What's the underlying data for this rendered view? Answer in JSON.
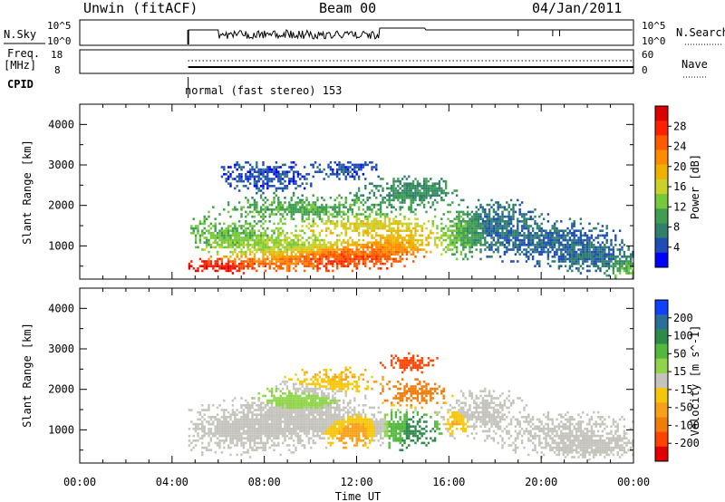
{
  "header": {
    "station": "Unwin (fitACF)",
    "beam": "Beam 00",
    "date": "04/Jan/2011"
  },
  "summary": {
    "nsky_label": "N.Sky",
    "nsearch_label": "N.Search",
    "freq_label_line1": "Freq.",
    "freq_label_line2": "[MHz]",
    "nave_label": "Nave",
    "cpid_label": "CPID",
    "cpid_text": "normal (fast stereo) 153",
    "noise_left_ticks": [
      "10^5",
      "10^0"
    ],
    "noise_right_ticks": [
      "10^5",
      "10^0"
    ],
    "freq_ticks": [
      "18",
      "8"
    ],
    "nave_ticks": [
      "60",
      "0"
    ],
    "data_start_hour": 4.7
  },
  "colors": {
    "power": [
      "#0000ff",
      "#1d4db5",
      "#2f7f6a",
      "#3f9e50",
      "#76c93a",
      "#c9d12a",
      "#f0b000",
      "#ff8c00",
      "#ff5a00",
      "#ff2000",
      "#dd0000"
    ],
    "velocity": [
      "#1040ff",
      "#2a6e9a",
      "#2e8a4a",
      "#52b83e",
      "#8fd44a",
      "#c4c4bc",
      "#f7c60b",
      "#f7a11a",
      "#f07c0a",
      "#ff4400",
      "#e00000"
    ]
  },
  "chart_data": [
    {
      "type": "heatmap",
      "panel": "power",
      "x_unit": "hours UT",
      "xlim": [
        0,
        24
      ],
      "ylim": [
        180,
        4500
      ],
      "ylabel": "Slant Range [km]",
      "xlabel": "Time UT",
      "xtick_labels": [
        "00:00",
        "04:00",
        "08:00",
        "12:00",
        "16:00",
        "20:00",
        "00:00"
      ],
      "ytick_labels": [
        "1000",
        "2000",
        "3000",
        "4000"
      ],
      "colorbar_label": "Power [dB]",
      "colorbar_ticks": [
        "28",
        "24",
        "20",
        "16",
        "12",
        "8",
        "4"
      ],
      "colorbar_range": [
        0,
        30
      ],
      "blobs": [
        {
          "t": 6.0,
          "r": 500,
          "dt": 1.4,
          "dr": 130,
          "v": 27
        },
        {
          "t": 8.5,
          "r": 600,
          "dt": 1.8,
          "dr": 160,
          "v": 22
        },
        {
          "t": 11.0,
          "r": 700,
          "dt": 1.8,
          "dr": 220,
          "v": 25
        },
        {
          "t": 13.0,
          "r": 800,
          "dt": 1.4,
          "dr": 250,
          "v": 23
        },
        {
          "t": 14.0,
          "r": 1100,
          "dt": 1.3,
          "dr": 220,
          "v": 17
        },
        {
          "t": 12.5,
          "r": 1500,
          "dt": 2.2,
          "dr": 180,
          "v": 16
        },
        {
          "t": 9.0,
          "r": 1000,
          "dt": 2.5,
          "dr": 250,
          "v": 14
        },
        {
          "t": 6.5,
          "r": 1300,
          "dt": 1.8,
          "dr": 300,
          "v": 11
        },
        {
          "t": 10.0,
          "r": 1900,
          "dt": 3.0,
          "dr": 250,
          "v": 10
        },
        {
          "t": 14.0,
          "r": 2300,
          "dt": 1.5,
          "dr": 280,
          "v": 8
        },
        {
          "t": 16.5,
          "r": 1300,
          "dt": 0.8,
          "dr": 420,
          "v": 12
        },
        {
          "t": 18.0,
          "r": 1500,
          "dt": 1.4,
          "dr": 500,
          "v": 6
        },
        {
          "t": 20.5,
          "r": 1100,
          "dt": 2.2,
          "dr": 420,
          "v": 5
        },
        {
          "t": 22.5,
          "r": 700,
          "dt": 1.6,
          "dr": 280,
          "v": 6
        },
        {
          "t": 23.6,
          "r": 450,
          "dt": 0.5,
          "dr": 180,
          "v": 12
        },
        {
          "t": 8.0,
          "r": 2700,
          "dt": 1.6,
          "dr": 300,
          "v": 4
        },
        {
          "t": 11.5,
          "r": 2900,
          "dt": 1.0,
          "dr": 200,
          "v": 4
        },
        {
          "t": 15.0,
          "r": 2400,
          "dt": 0.7,
          "dr": 200,
          "v": 8
        }
      ]
    },
    {
      "type": "heatmap",
      "panel": "velocity",
      "x_unit": "hours UT",
      "xlim": [
        0,
        24
      ],
      "ylim": [
        180,
        4500
      ],
      "ylabel": "Slant Range [km]",
      "xlabel": "Time UT",
      "xtick_labels": [
        "00:00",
        "04:00",
        "08:00",
        "12:00",
        "16:00",
        "20:00",
        "00:00"
      ],
      "ytick_labels": [
        "1000",
        "2000",
        "3000",
        "4000"
      ],
      "colorbar_label": "Velocity [m s^-1]",
      "colorbar_ticks": [
        "200",
        "100",
        "50",
        "15",
        "-15",
        "-50",
        "-100",
        "-200"
      ],
      "colorbar_range": [
        -250,
        250
      ],
      "blobs": [
        {
          "t": 7.0,
          "r": 1000,
          "dt": 2.3,
          "dr": 500,
          "v": 0
        },
        {
          "t": 10.0,
          "r": 1200,
          "dt": 2.5,
          "dr": 400,
          "v": 2
        },
        {
          "t": 12.0,
          "r": 1000,
          "dt": 1.2,
          "dr": 300,
          "v": -60
        },
        {
          "t": 14.0,
          "r": 1000,
          "dt": 1.2,
          "dr": 350,
          "v": 60
        },
        {
          "t": 14.5,
          "r": 1900,
          "dt": 1.0,
          "dr": 250,
          "v": -80
        },
        {
          "t": 14.3,
          "r": 2650,
          "dt": 0.9,
          "dr": 180,
          "v": -150
        },
        {
          "t": 11.0,
          "r": 2200,
          "dt": 1.5,
          "dr": 250,
          "v": -30
        },
        {
          "t": 17.5,
          "r": 1500,
          "dt": 1.2,
          "dr": 400,
          "v": 10
        },
        {
          "t": 21.0,
          "r": 900,
          "dt": 2.5,
          "dr": 400,
          "v": -5
        },
        {
          "t": 22.5,
          "r": 550,
          "dt": 1.5,
          "dr": 200,
          "v": 0
        },
        {
          "t": 9.5,
          "r": 1700,
          "dt": 1.6,
          "dr": 300,
          "v": 25
        },
        {
          "t": 16.3,
          "r": 1200,
          "dt": 0.5,
          "dr": 250,
          "v": -40
        }
      ]
    }
  ]
}
